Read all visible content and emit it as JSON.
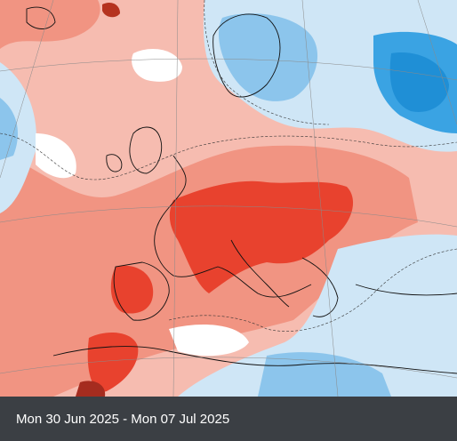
{
  "caption": {
    "date_range": "Mon 30 Jun 2025 - Mon 07 Jul 2025"
  },
  "map": {
    "type": "temperature anomaly map",
    "region": "Europe",
    "colors": {
      "strong_warm": "#e8422e",
      "warm": "#f08f7e",
      "mild_warm": "#f7c1b5",
      "neutral": "#ffffff",
      "mild_cool": "#cfe6f6",
      "cool": "#8cc5ec",
      "strong_cool": "#3aa3e3"
    }
  }
}
